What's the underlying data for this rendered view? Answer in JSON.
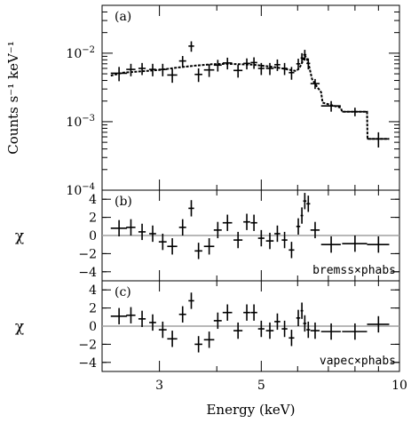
{
  "chart_data": [
    {
      "panel_label": "(a)",
      "type": "scatter",
      "ylabel": "Counts s⁻¹ keV⁻¹",
      "yscale": "log",
      "ylim": [
        0.0001,
        0.05
      ],
      "yticks": [
        {
          "value": 0.01,
          "base": "10",
          "exp": "−2"
        },
        {
          "value": 0.001,
          "base": "10",
          "exp": "−3"
        },
        {
          "value": 0.0001,
          "base": "10",
          "exp": "−4"
        }
      ],
      "data": [
        {
          "x": 2.45,
          "y": 0.0051,
          "xerr": 0.1,
          "yerr": [
            0.0012,
            0.0012
          ]
        },
        {
          "x": 2.6,
          "y": 0.0058,
          "xerr": 0.06,
          "yerr": [
            0.0012,
            0.0012
          ]
        },
        {
          "x": 2.75,
          "y": 0.006,
          "xerr": 0.05,
          "yerr": [
            0.0012,
            0.0012
          ]
        },
        {
          "x": 2.9,
          "y": 0.0058,
          "xerr": 0.05,
          "yerr": [
            0.0012,
            0.0012
          ]
        },
        {
          "x": 3.05,
          "y": 0.0058,
          "xerr": 0.06,
          "yerr": [
            0.0012,
            0.0012
          ]
        },
        {
          "x": 3.2,
          "y": 0.0048,
          "xerr": 0.08,
          "yerr": [
            0.0011,
            0.0011
          ]
        },
        {
          "x": 3.37,
          "y": 0.0077,
          "xerr": 0.06,
          "yerr": [
            0.0014,
            0.0014
          ]
        },
        {
          "x": 3.52,
          "y": 0.0127,
          "xerr": 0.05,
          "yerr": [
            0.0022,
            0.0022
          ]
        },
        {
          "x": 3.65,
          "y": 0.0049,
          "xerr": 0.07,
          "yerr": [
            0.0011,
            0.0011
          ]
        },
        {
          "x": 3.85,
          "y": 0.0057,
          "xerr": 0.1,
          "yerr": [
            0.0012,
            0.0012
          ]
        },
        {
          "x": 4.02,
          "y": 0.0067,
          "xerr": 0.08,
          "yerr": [
            0.0013,
            0.0013
          ]
        },
        {
          "x": 4.22,
          "y": 0.0072,
          "xerr": 0.1,
          "yerr": [
            0.0014,
            0.0014
          ]
        },
        {
          "x": 4.45,
          "y": 0.0056,
          "xerr": 0.1,
          "yerr": [
            0.0012,
            0.0012
          ]
        },
        {
          "x": 4.65,
          "y": 0.0071,
          "xerr": 0.08,
          "yerr": [
            0.0013,
            0.0013
          ]
        },
        {
          "x": 4.82,
          "y": 0.0073,
          "xerr": 0.08,
          "yerr": [
            0.0014,
            0.0014
          ]
        },
        {
          "x": 5.0,
          "y": 0.006,
          "xerr": 0.08,
          "yerr": [
            0.0012,
            0.0012
          ]
        },
        {
          "x": 5.22,
          "y": 0.006,
          "xerr": 0.1,
          "yerr": [
            0.0012,
            0.0012
          ]
        },
        {
          "x": 5.42,
          "y": 0.0068,
          "xerr": 0.08,
          "yerr": [
            0.0013,
            0.0013
          ]
        },
        {
          "x": 5.62,
          "y": 0.006,
          "xerr": 0.08,
          "yerr": [
            0.0012,
            0.0012
          ]
        },
        {
          "x": 5.82,
          "y": 0.0052,
          "xerr": 0.08,
          "yerr": [
            0.0011,
            0.0011
          ]
        },
        {
          "x": 6.02,
          "y": 0.007,
          "xerr": 0.06,
          "yerr": [
            0.0013,
            0.0013
          ]
        },
        {
          "x": 6.13,
          "y": 0.0085,
          "xerr": 0.04,
          "yerr": [
            0.0015,
            0.0015
          ]
        },
        {
          "x": 6.22,
          "y": 0.0095,
          "xerr": 0.05,
          "yerr": [
            0.0017,
            0.0017
          ]
        },
        {
          "x": 6.33,
          "y": 0.0071,
          "xerr": 0.06,
          "yerr": [
            0.0013,
            0.0013
          ]
        },
        {
          "x": 6.55,
          "y": 0.0036,
          "xerr": 0.15,
          "yerr": [
            0.0006,
            0.0006
          ]
        },
        {
          "x": 7.1,
          "y": 0.0017,
          "xerr": 0.35,
          "yerr": [
            0.0003,
            0.0003
          ]
        },
        {
          "x": 8.0,
          "y": 0.0014,
          "xerr": 0.5,
          "yerr": [
            0.0002,
            0.0002
          ]
        },
        {
          "x": 9.0,
          "y": 0.00056,
          "xerr": 0.5,
          "yerr": [
            0.00014,
            0.00014
          ]
        }
      ],
      "model": [
        [
          2.35,
          0.0047
        ],
        [
          2.5,
          0.0052
        ],
        [
          2.8,
          0.0055
        ],
        [
          3.0,
          0.0057
        ],
        [
          3.3,
          0.0062
        ],
        [
          3.6,
          0.0066
        ],
        [
          3.9,
          0.0069
        ],
        [
          4.2,
          0.007
        ],
        [
          4.5,
          0.0069
        ],
        [
          4.8,
          0.0068
        ],
        [
          5.1,
          0.0065
        ],
        [
          5.4,
          0.0062
        ],
        [
          5.7,
          0.0058
        ],
        [
          5.95,
          0.0055
        ],
        [
          6.05,
          0.006
        ],
        [
          6.15,
          0.0075
        ],
        [
          6.22,
          0.0092
        ],
        [
          6.28,
          0.0085
        ],
        [
          6.36,
          0.0063
        ],
        [
          6.45,
          0.0042
        ],
        [
          6.6,
          0.0033
        ],
        [
          6.75,
          0.0027
        ],
        [
          6.8,
          0.0019
        ],
        [
          7.45,
          0.0016
        ],
        [
          7.5,
          0.0014
        ],
        [
          8.5,
          0.0014
        ],
        [
          8.52,
          0.00056
        ],
        [
          9.5,
          0.00056
        ]
      ]
    },
    {
      "panel_label": "(b)",
      "type": "scatter",
      "ylabel": "χ",
      "ylim": [
        -5,
        5
      ],
      "yticks": [
        4,
        2,
        0,
        -2,
        -4
      ],
      "annotation": "bremss×phabs",
      "data": [
        {
          "x": 2.45,
          "y": 0.8,
          "xerr": 0.1
        },
        {
          "x": 2.6,
          "y": 0.9,
          "xerr": 0.06
        },
        {
          "x": 2.75,
          "y": 0.4,
          "xerr": 0.05
        },
        {
          "x": 2.9,
          "y": 0.2,
          "xerr": 0.05
        },
        {
          "x": 3.05,
          "y": -0.7,
          "xerr": 0.06
        },
        {
          "x": 3.2,
          "y": -1.2,
          "xerr": 0.08
        },
        {
          "x": 3.37,
          "y": 0.9,
          "xerr": 0.06
        },
        {
          "x": 3.52,
          "y": 3.0,
          "xerr": 0.05
        },
        {
          "x": 3.65,
          "y": -1.7,
          "xerr": 0.07
        },
        {
          "x": 3.85,
          "y": -1.2,
          "xerr": 0.1
        },
        {
          "x": 4.02,
          "y": 0.6,
          "xerr": 0.08
        },
        {
          "x": 4.22,
          "y": 1.4,
          "xerr": 0.1
        },
        {
          "x": 4.45,
          "y": -0.5,
          "xerr": 0.1
        },
        {
          "x": 4.65,
          "y": 1.5,
          "xerr": 0.08
        },
        {
          "x": 4.82,
          "y": 1.4,
          "xerr": 0.08
        },
        {
          "x": 5.0,
          "y": -0.3,
          "xerr": 0.08
        },
        {
          "x": 5.22,
          "y": -0.6,
          "xerr": 0.1
        },
        {
          "x": 5.42,
          "y": 0.2,
          "xerr": 0.08
        },
        {
          "x": 5.62,
          "y": -0.5,
          "xerr": 0.08
        },
        {
          "x": 5.82,
          "y": -1.6,
          "xerr": 0.08
        },
        {
          "x": 6.02,
          "y": 1.0,
          "xerr": 0.06
        },
        {
          "x": 6.13,
          "y": 2.2,
          "xerr": 0.04
        },
        {
          "x": 6.22,
          "y": 3.8,
          "xerr": 0.05
        },
        {
          "x": 6.33,
          "y": 3.5,
          "xerr": 0.06
        },
        {
          "x": 6.55,
          "y": 0.6,
          "xerr": 0.15
        },
        {
          "x": 7.1,
          "y": -1.0,
          "xerr": 0.35
        },
        {
          "x": 8.0,
          "y": -0.9,
          "xerr": 0.5
        },
        {
          "x": 9.0,
          "y": -1.0,
          "xerr": 0.5
        }
      ]
    },
    {
      "panel_label": "(c)",
      "type": "scatter",
      "ylabel": "χ",
      "ylim": [
        -5,
        5
      ],
      "yticks": [
        4,
        2,
        0,
        -2,
        -4
      ],
      "annotation": "vapec×phabs",
      "data": [
        {
          "x": 2.45,
          "y": 1.1,
          "xerr": 0.1
        },
        {
          "x": 2.6,
          "y": 1.2,
          "xerr": 0.06
        },
        {
          "x": 2.75,
          "y": 0.8,
          "xerr": 0.05
        },
        {
          "x": 2.9,
          "y": 0.4,
          "xerr": 0.05
        },
        {
          "x": 3.05,
          "y": -0.4,
          "xerr": 0.06
        },
        {
          "x": 3.2,
          "y": -1.4,
          "xerr": 0.08
        },
        {
          "x": 3.37,
          "y": 1.3,
          "xerr": 0.06
        },
        {
          "x": 3.52,
          "y": 2.8,
          "xerr": 0.05
        },
        {
          "x": 3.65,
          "y": -2.0,
          "xerr": 0.07
        },
        {
          "x": 3.85,
          "y": -1.5,
          "xerr": 0.1
        },
        {
          "x": 4.02,
          "y": 0.6,
          "xerr": 0.08
        },
        {
          "x": 4.22,
          "y": 1.5,
          "xerr": 0.1
        },
        {
          "x": 4.45,
          "y": -0.5,
          "xerr": 0.1
        },
        {
          "x": 4.65,
          "y": 1.5,
          "xerr": 0.08
        },
        {
          "x": 4.82,
          "y": 1.5,
          "xerr": 0.08
        },
        {
          "x": 5.0,
          "y": -0.3,
          "xerr": 0.08
        },
        {
          "x": 5.22,
          "y": -0.5,
          "xerr": 0.1
        },
        {
          "x": 5.42,
          "y": 0.5,
          "xerr": 0.08
        },
        {
          "x": 5.62,
          "y": -0.3,
          "xerr": 0.08
        },
        {
          "x": 5.82,
          "y": -1.3,
          "xerr": 0.08
        },
        {
          "x": 6.02,
          "y": 0.9,
          "xerr": 0.06
        },
        {
          "x": 6.13,
          "y": 1.7,
          "xerr": 0.04
        },
        {
          "x": 6.22,
          "y": 0.3,
          "xerr": 0.05
        },
        {
          "x": 6.33,
          "y": -0.4,
          "xerr": 0.06
        },
        {
          "x": 6.55,
          "y": -0.5,
          "xerr": 0.15
        },
        {
          "x": 7.1,
          "y": -0.6,
          "xerr": 0.35
        },
        {
          "x": 8.0,
          "y": -0.6,
          "xerr": 0.5
        },
        {
          "x": 9.0,
          "y": 0.2,
          "xerr": 0.5
        }
      ]
    }
  ],
  "shared_x": {
    "label": "Energy (keV)",
    "scale": "log",
    "xlim": [
      2.25,
      10.0
    ],
    "major_ticks": [
      {
        "value": 3,
        "label": "3"
      },
      {
        "value": 5,
        "label": "5"
      },
      {
        "value": 10,
        "label": "10"
      }
    ],
    "minor_ticks": [
      4,
      6,
      7,
      8,
      9
    ]
  },
  "colors": {
    "data": "#000000",
    "zero_line": "#a0a0a0"
  }
}
